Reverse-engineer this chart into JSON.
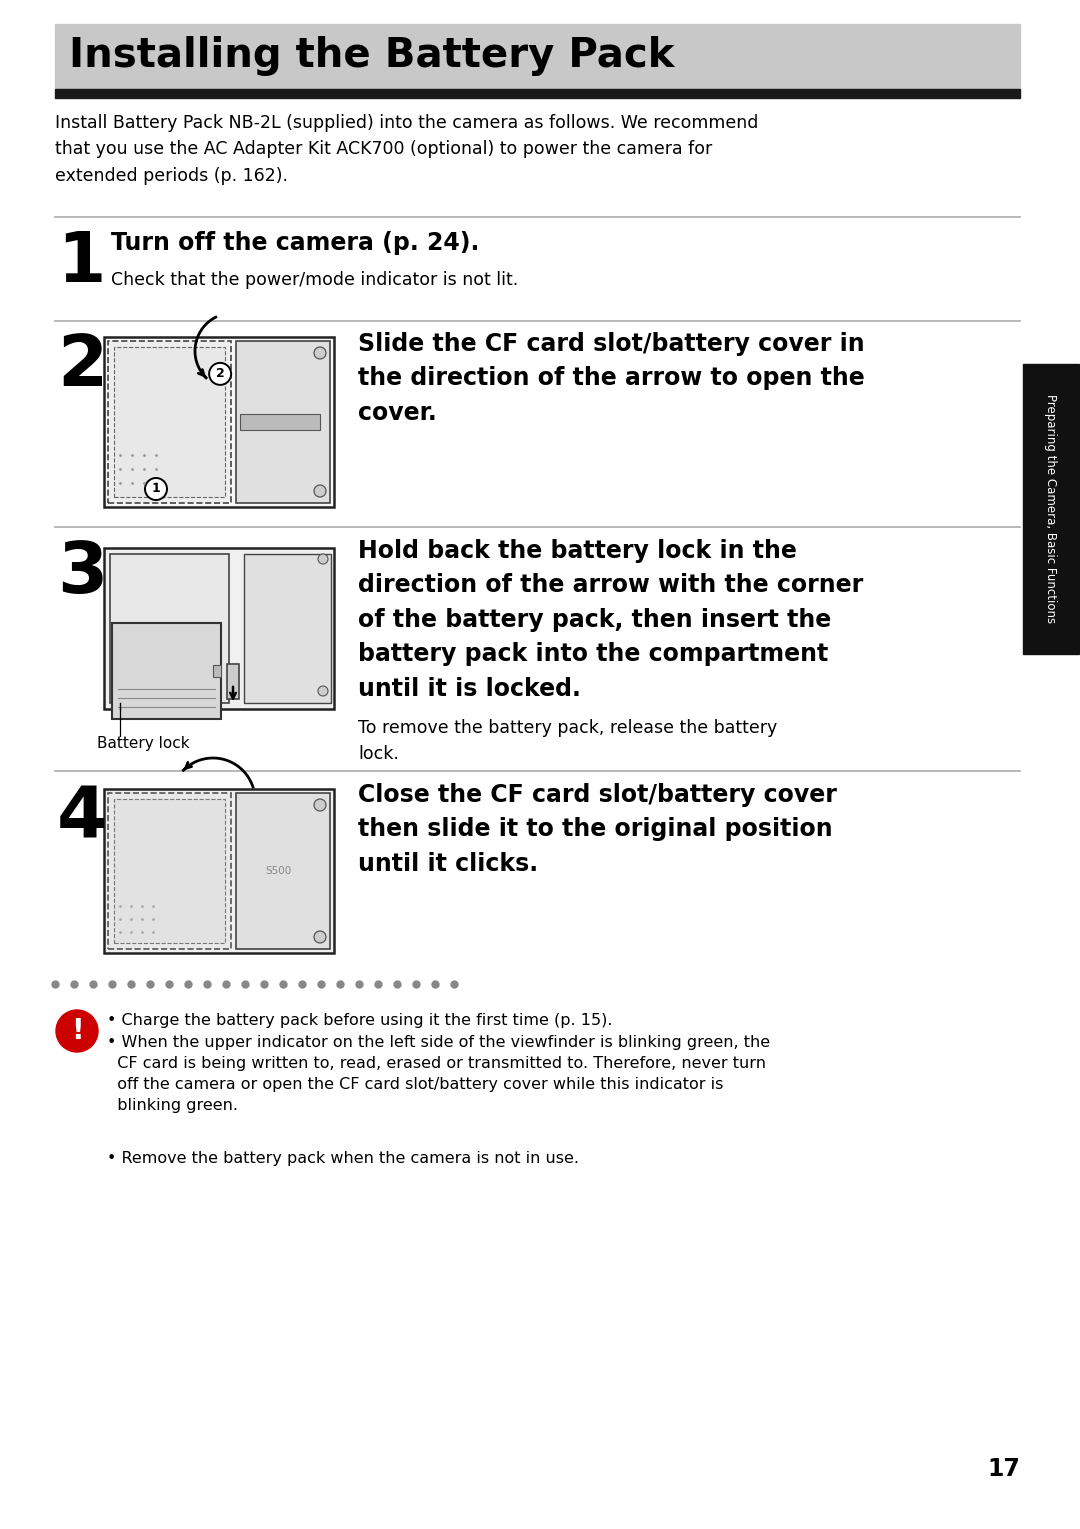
{
  "title": "Installing the Battery Pack",
  "title_bg_color": "#c8c8c8",
  "page_bg": "#ffffff",
  "intro_text": "Install Battery Pack NB-2L (supplied) into the camera as follows. We recommend\nthat you use the AC Adapter Kit ACK700 (optional) to power the camera for\nextended periods (p. 162).",
  "step1_num": "1",
  "step1_main": "Turn off the camera (p. 24).",
  "step1_sub": "Check that the power/mode indicator is not lit.",
  "step2_num": "2",
  "step2_main": "Slide the CF card slot/battery cover in\nthe direction of the arrow to open the\ncover.",
  "step3_num": "3",
  "step3_main": "Hold back the battery lock in the\ndirection of the arrow with the corner\nof the battery pack, then insert the\nbattery pack into the compartment\nuntil it is locked.",
  "step3_sub": "To remove the battery pack, release the battery\nlock.",
  "step3_label": "Battery lock",
  "step4_num": "4",
  "step4_main": "Close the CF card slot/battery cover\nthen slide it to the original position\nuntil it clicks.",
  "warning_bullet1": "Charge the battery pack before using it the first time (p. 15).",
  "warning_bullet2": "When the upper indicator on the left side of the viewfinder is blinking green, the\n  CF card is being written to, read, erased or transmitted to. Therefore, never turn\n  off the camera or open the CF card slot/battery cover while this indicator is\n  blinking green.",
  "warning_bullet3": "Remove the battery pack when the camera is not in use.",
  "side_tab_text": "Preparing the Camera, Basic Functions",
  "page_number": "17",
  "text_color": "#000000",
  "line_color": "#aaaaaa",
  "tab_color": "#111111",
  "warn_icon_color": "#cc0000"
}
